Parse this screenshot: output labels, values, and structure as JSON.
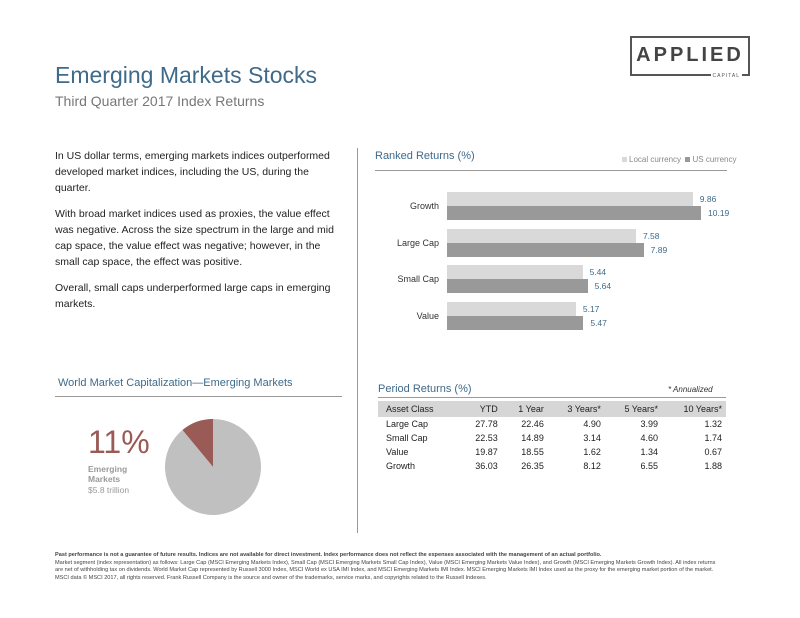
{
  "header": {
    "title": "Emerging Markets Stocks",
    "subtitle": "Third Quarter 2017 Index Returns",
    "logo_main": "APPLIED",
    "logo_sub": "CAPITAL"
  },
  "body": {
    "p1": "In US dollar terms, emerging markets indices outperformed developed market indices, including the US, during the quarter.",
    "p2": "With broad market indices used as proxies, the value effect was negative. Across the size spectrum in the large and mid cap space, the value effect was negative; however, in the small cap space, the effect was positive.",
    "p3": "Overall, small caps underperformed large caps in emerging markets."
  },
  "ranked": {
    "title": "Ranked Returns (%)",
    "legend_local": "Local currency",
    "legend_us": "US currency",
    "colors": {
      "local": "#d9d9d9",
      "us": "#999999"
    }
  },
  "chart_data": [
    {
      "type": "bar",
      "title": "Ranked Returns (%)",
      "categories": [
        "Growth",
        "Large Cap",
        "Small Cap",
        "Value"
      ],
      "series": [
        {
          "name": "Local currency",
          "values": [
            9.86,
            7.58,
            5.44,
            5.17
          ]
        },
        {
          "name": "US currency",
          "values": [
            10.19,
            7.89,
            5.64,
            5.47
          ]
        }
      ],
      "orientation": "horizontal",
      "xlim": [
        0,
        10.19
      ],
      "legend": "top-right"
    },
    {
      "type": "pie",
      "title": "World Market Capitalization—Emerging Markets",
      "slices": [
        {
          "label": "Emerging Markets",
          "value": 11,
          "color": "#9a5a55"
        },
        {
          "label": "",
          "value": 89,
          "color": "#c0c0c0"
        }
      ]
    }
  ],
  "period": {
    "title": "Period Returns (%)",
    "note": "* Annualized",
    "headers": [
      "Asset Class",
      "YTD",
      "1 Year",
      "3 Years*",
      "5 Years*",
      "10 Years*"
    ],
    "rows": [
      [
        "Large Cap",
        "27.78",
        "22.46",
        "4.90",
        "3.99",
        "1.32"
      ],
      [
        "Small Cap",
        "22.53",
        "14.89",
        "3.14",
        "4.60",
        "1.74"
      ],
      [
        "Value",
        "19.87",
        "18.55",
        "1.62",
        "1.34",
        "0.67"
      ],
      [
        "Growth",
        "36.03",
        "26.35",
        "8.12",
        "6.55",
        "1.88"
      ]
    ]
  },
  "cap": {
    "title": "World Market Capitalization—Emerging Markets",
    "pct": "11%",
    "label": "Emerging Markets",
    "value": "$5.8 trillion"
  },
  "footer": {
    "bold": "Past performance is not a guarantee of future results. Indices are not available for direct investment. Index performance does not reflect the expenses associated with the management of an actual portfolio.",
    "text": "Market segment (index representation) as follows: Large Cap (MSCI Emerging Markets Index), Small Cap (MSCI Emerging Markets Small Cap Index), Value (MSCI Emerging Markets Value Index), and Growth (MSCI Emerging Markets Growth Index). All index returns are net of withholding tax on dividends. World Market Cap represented by Russell 3000 Index, MSCI World ex USA IMI Index, and MSCI Emerging Markets IMI Index. MSCI Emerging Markets IMI Index used as the proxy for the emerging market portion of the market. MSCI data © MSCI 2017, all rights reserved. Frank Russell Company is the source and owner of the trademarks, service marks, and copyrights related to the Russell Indexes."
  }
}
